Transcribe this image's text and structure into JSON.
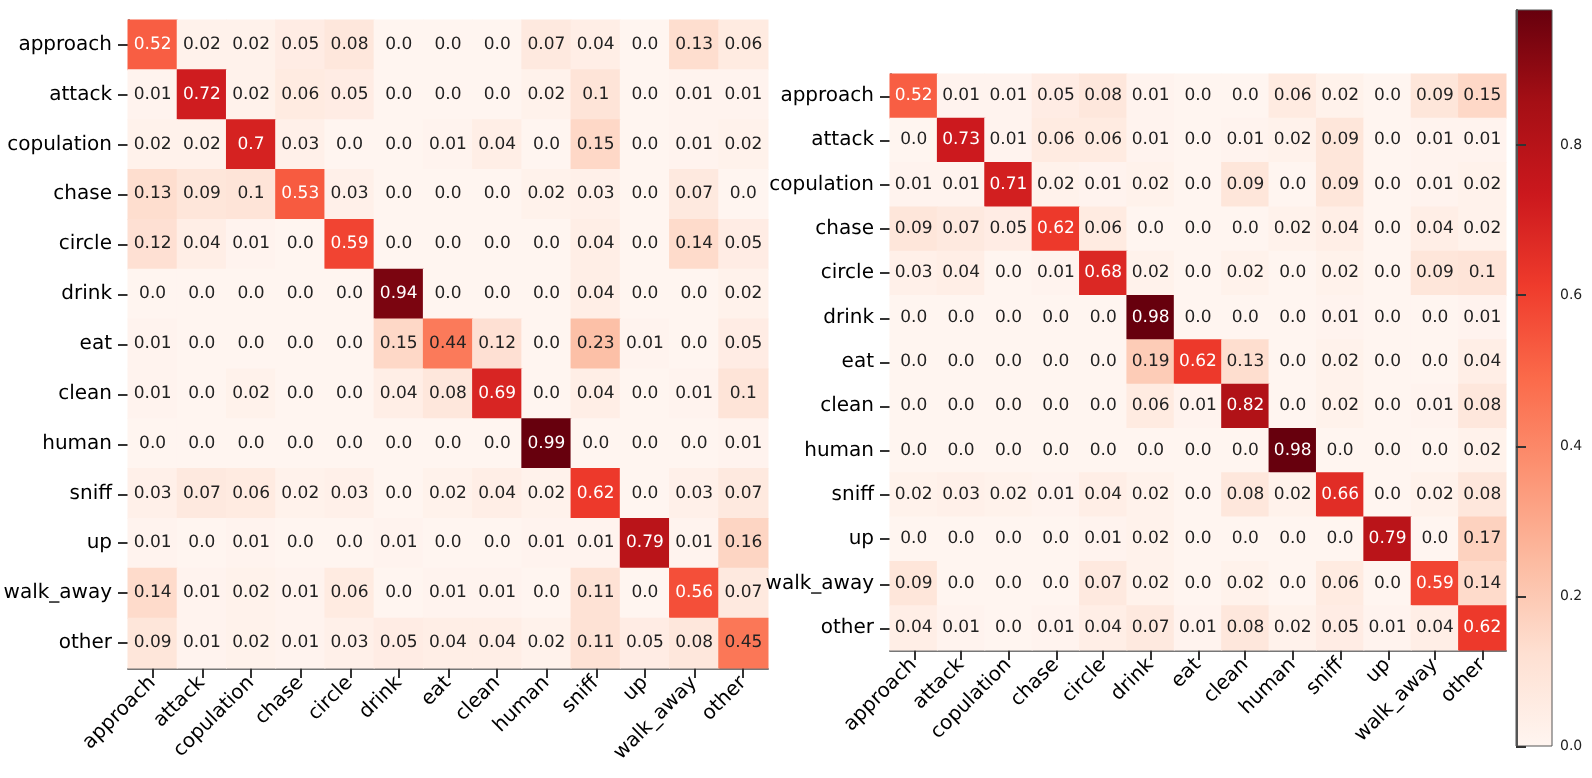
{
  "chart_data": [
    {
      "type": "heatmap",
      "categories": [
        "approach",
        "attack",
        "copulation",
        "chase",
        "circle",
        "drink",
        "eat",
        "clean",
        "human",
        "sniff",
        "up",
        "walk_away",
        "other"
      ],
      "y_categories": [
        "approach",
        "attack",
        "copulation",
        "chase",
        "circle",
        "drink",
        "eat",
        "clean",
        "human",
        "sniff",
        "up",
        "walk_away",
        "other"
      ],
      "data_labels": true,
      "cells": [
        [
          0.52,
          0.02,
          0.02,
          0.05,
          0.08,
          0,
          0,
          0,
          0.07,
          0.04,
          0,
          0.13,
          0.06
        ],
        [
          0.01,
          0.72,
          0.02,
          0.06,
          0.05,
          0,
          0,
          0,
          0.02,
          0.1,
          0,
          0.01,
          0.01
        ],
        [
          0.02,
          0.02,
          0.7,
          0.03,
          0,
          0,
          0.01,
          0.04,
          0,
          0.15,
          0,
          0.01,
          0.02
        ],
        [
          0.13,
          0.09,
          0.1,
          0.53,
          0.03,
          0,
          0,
          0,
          0.02,
          0.03,
          0,
          0.07,
          0
        ],
        [
          0.12,
          0.04,
          0.01,
          0,
          0.59,
          0,
          0,
          0,
          0,
          0.04,
          0,
          0.14,
          0.05
        ],
        [
          0,
          0,
          0,
          0,
          0,
          0.94,
          0,
          0,
          0,
          0.04,
          0,
          0,
          0.02
        ],
        [
          0.01,
          0,
          0,
          0,
          0,
          0.15,
          0.44,
          0.12,
          0,
          0.23,
          0.01,
          0,
          0.05
        ],
        [
          0.01,
          0,
          0.02,
          0,
          0,
          0.04,
          0.08,
          0.69,
          0,
          0.04,
          0,
          0.01,
          0.1
        ],
        [
          0,
          0,
          0,
          0,
          0,
          0,
          0,
          0,
          0.99,
          0,
          0,
          0,
          0.01
        ],
        [
          0.03,
          0.07,
          0.06,
          0.02,
          0.03,
          0,
          0.02,
          0.04,
          0.02,
          0.62,
          0,
          0.03,
          0.07
        ],
        [
          0.01,
          0,
          0.01,
          0,
          0,
          0.01,
          0,
          0,
          0.01,
          0.01,
          0.79,
          0.01,
          0.16
        ],
        [
          0.14,
          0.01,
          0.02,
          0.01,
          0.06,
          0,
          0.01,
          0.01,
          0,
          0.11,
          0,
          0.56,
          0.07
        ],
        [
          0.09,
          0.01,
          0.02,
          0.01,
          0.03,
          0.05,
          0.04,
          0.04,
          0.02,
          0.11,
          0.05,
          0.08,
          0.45
        ]
      ],
      "cell_labels": [
        [
          "0.52",
          "0.02",
          "0.02",
          "0.05",
          "0.08",
          "0.0",
          "0.0",
          "0.0",
          "0.07",
          "0.04",
          "0.0",
          "0.13",
          "0.06"
        ],
        [
          "0.01",
          "0.72",
          "0.02",
          "0.06",
          "0.05",
          "0.0",
          "0.0",
          "0.0",
          "0.02",
          "0.1",
          "0.0",
          "0.01",
          "0.01"
        ],
        [
          "0.02",
          "0.02",
          "0.7",
          "0.03",
          "0.0",
          "0.0",
          "0.01",
          "0.04",
          "0.0",
          "0.15",
          "0.0",
          "0.01",
          "0.02"
        ],
        [
          "0.13",
          "0.09",
          "0.1",
          "0.53",
          "0.03",
          "0.0",
          "0.0",
          "0.0",
          "0.02",
          "0.03",
          "0.0",
          "0.07",
          "0.0"
        ],
        [
          "0.12",
          "0.04",
          "0.01",
          "0.0",
          "0.59",
          "0.0",
          "0.0",
          "0.0",
          "0.0",
          "0.04",
          "0.0",
          "0.14",
          "0.05"
        ],
        [
          "0.0",
          "0.0",
          "0.0",
          "0.0",
          "0.0",
          "0.94",
          "0.0",
          "0.0",
          "0.0",
          "0.04",
          "0.0",
          "0.0",
          "0.02"
        ],
        [
          "0.01",
          "0.0",
          "0.0",
          "0.0",
          "0.0",
          "0.15",
          "0.44",
          "0.12",
          "0.0",
          "0.23",
          "0.01",
          "0.0",
          "0.05"
        ],
        [
          "0.01",
          "0.0",
          "0.02",
          "0.0",
          "0.0",
          "0.04",
          "0.08",
          "0.69",
          "0.0",
          "0.04",
          "0.0",
          "0.01",
          "0.1"
        ],
        [
          "0.0",
          "0.0",
          "0.0",
          "0.0",
          "0.0",
          "0.0",
          "0.0",
          "0.0",
          "0.99",
          "0.0",
          "0.0",
          "0.0",
          "0.01"
        ],
        [
          "0.03",
          "0.07",
          "0.06",
          "0.02",
          "0.03",
          "0.0",
          "0.02",
          "0.04",
          "0.02",
          "0.62",
          "0.0",
          "0.03",
          "0.07"
        ],
        [
          "0.01",
          "0.0",
          "0.01",
          "0.0",
          "0.0",
          "0.01",
          "0.0",
          "0.0",
          "0.01",
          "0.01",
          "0.79",
          "0.01",
          "0.16"
        ],
        [
          "0.14",
          "0.01",
          "0.02",
          "0.01",
          "0.06",
          "0.0",
          "0.01",
          "0.01",
          "0.0",
          "0.11",
          "0.0",
          "0.56",
          "0.07"
        ],
        [
          "0.09",
          "0.01",
          "0.02",
          "0.01",
          "0.03",
          "0.05",
          "0.04",
          "0.04",
          "0.02",
          "0.11",
          "0.05",
          "0.08",
          "0.45"
        ]
      ]
    },
    {
      "type": "heatmap",
      "categories": [
        "approach",
        "attack",
        "copulation",
        "chase",
        "circle",
        "drink",
        "eat",
        "clean",
        "human",
        "sniff",
        "up",
        "walk_away",
        "other"
      ],
      "y_categories": [
        "approach",
        "attack",
        "copulation",
        "chase",
        "circle",
        "drink",
        "eat",
        "clean",
        "human",
        "sniff",
        "up",
        "walk_away",
        "other"
      ],
      "data_labels": true,
      "clim": [
        0,
        0.98
      ],
      "cticks": [
        {
          "value": 0,
          "label": "0.0"
        },
        0.2,
        0.4,
        0.6,
        0.8
      ],
      "cells": [
        [
          0.52,
          0.01,
          0.01,
          0.05,
          0.08,
          0.01,
          0,
          0,
          0.06,
          0.02,
          0,
          0.09,
          0.15
        ],
        [
          0,
          0.73,
          0.01,
          0.06,
          0.06,
          0.01,
          0,
          0.01,
          0.02,
          0.09,
          0,
          0.01,
          0.01
        ],
        [
          0.01,
          0.01,
          0.71,
          0.02,
          0.01,
          0.02,
          0,
          0.09,
          0,
          0.09,
          0,
          0.01,
          0.02
        ],
        [
          0.09,
          0.07,
          0.05,
          0.62,
          0.06,
          0,
          0,
          0,
          0.02,
          0.04,
          0,
          0.04,
          0.02
        ],
        [
          0.03,
          0.04,
          0,
          0.01,
          0.68,
          0.02,
          0,
          0.02,
          0,
          0.02,
          0,
          0.09,
          0.1
        ],
        [
          0,
          0,
          0,
          0,
          0,
          0.98,
          0,
          0,
          0,
          0.01,
          0,
          0,
          0.01
        ],
        [
          0,
          0,
          0,
          0,
          0,
          0.19,
          0.62,
          0.13,
          0,
          0.02,
          0,
          0,
          0.04
        ],
        [
          0,
          0,
          0,
          0,
          0,
          0.06,
          0.01,
          0.82,
          0,
          0.02,
          0,
          0.01,
          0.08
        ],
        [
          0,
          0,
          0,
          0,
          0,
          0,
          0,
          0,
          0.98,
          0,
          0,
          0,
          0.02
        ],
        [
          0.02,
          0.03,
          0.02,
          0.01,
          0.04,
          0.02,
          0,
          0.08,
          0.02,
          0.66,
          0,
          0.02,
          0.08
        ],
        [
          0,
          0,
          0,
          0,
          0.01,
          0.02,
          0,
          0,
          0,
          0,
          0.79,
          0,
          0.17
        ],
        [
          0.09,
          0,
          0,
          0,
          0.07,
          0.02,
          0,
          0.02,
          0,
          0.06,
          0,
          0.59,
          0.14
        ],
        [
          0.04,
          0.01,
          0,
          0.01,
          0.04,
          0.07,
          0.01,
          0.08,
          0.02,
          0.05,
          0.01,
          0.04,
          0.62
        ]
      ],
      "cell_labels": [
        [
          "0.52",
          "0.01",
          "0.01",
          "0.05",
          "0.08",
          "0.01",
          "0.0",
          "0.0",
          "0.06",
          "0.02",
          "0.0",
          "0.09",
          "0.15"
        ],
        [
          "0.0",
          "0.73",
          "0.01",
          "0.06",
          "0.06",
          "0.01",
          "0.0",
          "0.01",
          "0.02",
          "0.09",
          "0.0",
          "0.01",
          "0.01"
        ],
        [
          "0.01",
          "0.01",
          "0.71",
          "0.02",
          "0.01",
          "0.02",
          "0.0",
          "0.09",
          "0.0",
          "0.09",
          "0.0",
          "0.01",
          "0.02"
        ],
        [
          "0.09",
          "0.07",
          "0.05",
          "0.62",
          "0.06",
          "0.0",
          "0.0",
          "0.0",
          "0.02",
          "0.04",
          "0.0",
          "0.04",
          "0.02"
        ],
        [
          "0.03",
          "0.04",
          "0.0",
          "0.01",
          "0.68",
          "0.02",
          "0.0",
          "0.02",
          "0.0",
          "0.02",
          "0.0",
          "0.09",
          "0.1"
        ],
        [
          "0.0",
          "0.0",
          "0.0",
          "0.0",
          "0.0",
          "0.98",
          "0.0",
          "0.0",
          "0.0",
          "0.01",
          "0.0",
          "0.0",
          "0.01"
        ],
        [
          "0.0",
          "0.0",
          "0.0",
          "0.0",
          "0.0",
          "0.19",
          "0.62",
          "0.13",
          "0.0",
          "0.02",
          "0.0",
          "0.0",
          "0.04"
        ],
        [
          "0.0",
          "0.0",
          "0.0",
          "0.0",
          "0.0",
          "0.06",
          "0.01",
          "0.82",
          "0.0",
          "0.02",
          "0.0",
          "0.01",
          "0.08"
        ],
        [
          "0.0",
          "0.0",
          "0.0",
          "0.0",
          "0.0",
          "0.0",
          "0.0",
          "0.0",
          "0.98",
          "0.0",
          "0.0",
          "0.0",
          "0.02"
        ],
        [
          "0.02",
          "0.03",
          "0.02",
          "0.01",
          "0.04",
          "0.02",
          "0.0",
          "0.08",
          "0.02",
          "0.66",
          "0.0",
          "0.02",
          "0.08"
        ],
        [
          "0.0",
          "0.0",
          "0.0",
          "0.0",
          "0.01",
          "0.02",
          "0.0",
          "0.0",
          "0.0",
          "0.0",
          "0.79",
          "0.0",
          "0.17"
        ],
        [
          "0.09",
          "0.0",
          "0.0",
          "0.0",
          "0.07",
          "0.02",
          "0.0",
          "0.02",
          "0.0",
          "0.06",
          "0.0",
          "0.59",
          "0.14"
        ],
        [
          "0.04",
          "0.01",
          "0.0",
          "0.01",
          "0.04",
          "0.07",
          "0.01",
          "0.08",
          "0.02",
          "0.05",
          "0.01",
          "0.04",
          "0.62"
        ]
      ]
    }
  ]
}
